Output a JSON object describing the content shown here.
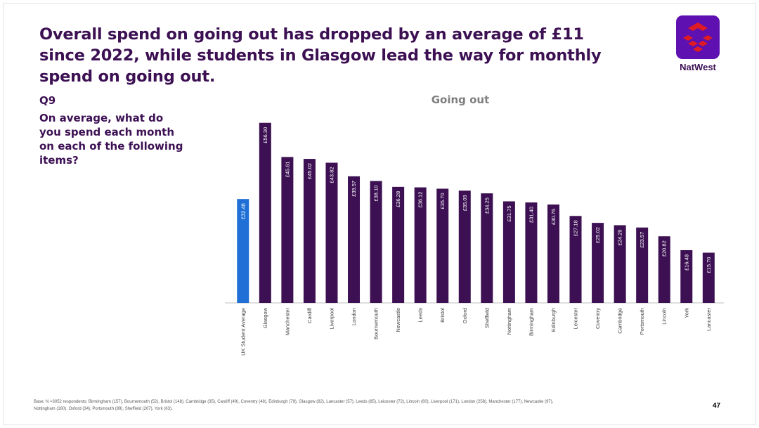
{
  "headline": "Overall spend on going out has dropped by an average of £11 since 2022, while students in Glasgow lead the way for monthly spend on going out.",
  "brand": {
    "name": "NatWest",
    "logo_icon": "natwest-logo-icon",
    "logo_bg": "#5e10b1",
    "logo_mark": "#e11b22"
  },
  "question": {
    "number": "Q9",
    "text": "On average, what do you spend each month on each of the following items?"
  },
  "chart_data": {
    "type": "bar",
    "title": "Going out",
    "categories": [
      "UK Student Average",
      "Glasgow",
      "Manchester",
      "Cardiff",
      "Liverpool",
      "London",
      "Bournemouth",
      "Newcastle",
      "Leeds",
      "Bristol",
      "Oxford",
      "Sheffield",
      "Nottingham",
      "Birmingham",
      "Edinburgh",
      "Leicester",
      "Coventry",
      "Cambridge",
      "Portsmouth",
      "Lincoln",
      "York",
      "Lancaster"
    ],
    "values": [
      32.48,
      56.3,
      45.61,
      45.02,
      43.82,
      39.57,
      38.1,
      36.28,
      36.12,
      35.7,
      35.09,
      34.25,
      31.75,
      31.4,
      30.76,
      27.18,
      25.02,
      24.29,
      23.57,
      20.82,
      16.48,
      15.7
    ],
    "labels": [
      "£32.48",
      "£56.30",
      "£45.61",
      "£45.02",
      "£43.82",
      "£39.57",
      "£38.10",
      "£36.28",
      "£36.12",
      "£35.70",
      "£35.09",
      "£34.25",
      "£31.75",
      "£31.40",
      "£30.76",
      "£27.18",
      "£25.02",
      "£24.29",
      "£23.57",
      "£20.82",
      "£16.48",
      "£15.70"
    ],
    "highlight_index": 0,
    "colors": {
      "highlight": "#1f6fd6",
      "default": "#3c1053",
      "label": "#ffffff",
      "axis": "#bfbfbf",
      "tick": "#404040"
    },
    "ylim": [
      0,
      58
    ],
    "grid": false,
    "legend": "none"
  },
  "footer": {
    "base_note": "Base: N =3052 respondents; Birmingham (157), Bournemouth (52), Bristol (148), Cambridge (35), Cardiff (49), Coventry (48), Edinburgh (79), Glasgow (82), Lancaster (57), Leeds (85), Leicester (72), Lincoln (60), Liverpool (171), London (258), Manchester (177), Newcastle (97), Nottingham (160), Oxford (34), Portsmouth (89), Sheffield (207), York (63).",
    "page_number": "47"
  }
}
